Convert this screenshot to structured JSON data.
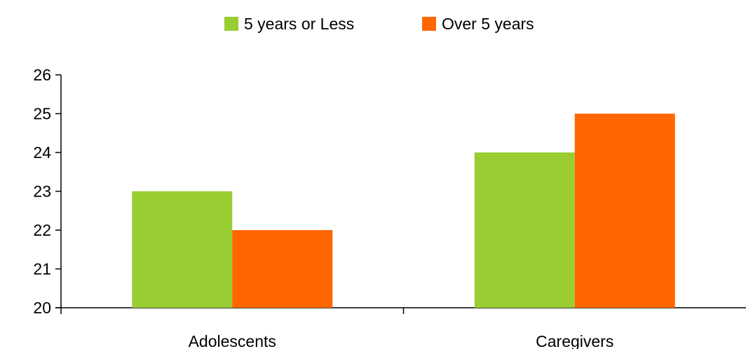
{
  "chart_data": {
    "type": "bar",
    "categories": [
      "Adolescents",
      "Caregivers"
    ],
    "series": [
      {
        "name": "5 years or Less",
        "values": [
          23,
          24
        ],
        "color": "#9ACD32"
      },
      {
        "name": "Over 5 years",
        "values": [
          22,
          25
        ],
        "color": "#FF6600"
      }
    ],
    "title": "",
    "xlabel": "",
    "ylabel": "",
    "ylim": [
      20,
      26
    ],
    "yticks": [
      "20",
      "21",
      "22",
      "23",
      "24",
      "25",
      "26"
    ],
    "grid": false,
    "legend_position": "top-center"
  }
}
